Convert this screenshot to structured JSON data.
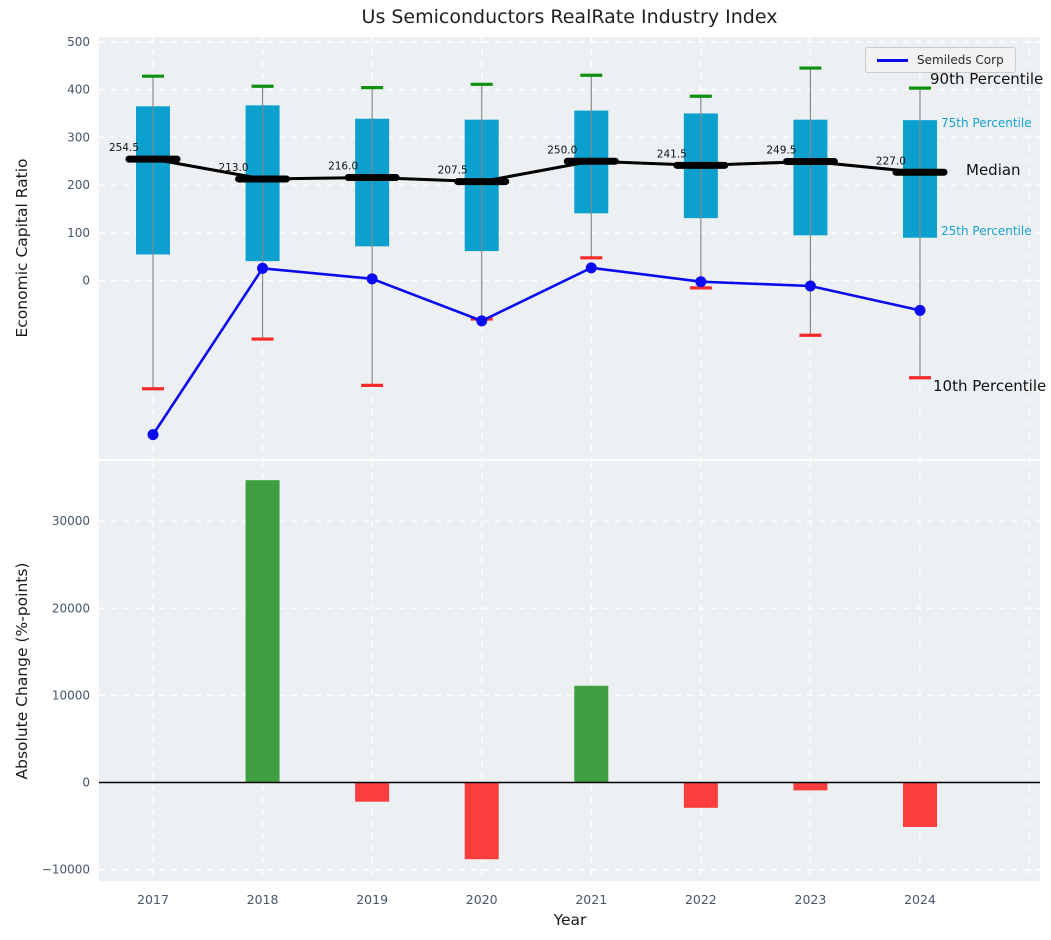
{
  "title": "Us Semiconductors RealRate Industry Index",
  "legend": {
    "label": "Semileds Corp"
  },
  "annotations": {
    "p90": "90th Percentile",
    "p75": "75th Percentile",
    "median": "Median",
    "p25": "25th Percentile",
    "p10": "10th Percentile"
  },
  "colors": {
    "panel_bg": "#edf0f2",
    "grid": "#ffffff",
    "box_fill": "#0ba0cd",
    "whisker": "#8a8a8a",
    "cap_green": "#0f8f0f",
    "cap_red": "#f52b2b",
    "median_black": "#000000",
    "company_blue": "#0b0bf0",
    "bar_positive": "#3f9e41",
    "bar_negative": "#fa3d3d",
    "tick_text": "#46566b",
    "median_label_text": "#111111",
    "annotation_cyan": "#18a0d0",
    "zero_line": "#000000"
  },
  "chart_data": [
    {
      "type": "boxline",
      "panel": "top",
      "ylabel": "Economic Capital Ratio",
      "ylim": [
        -373,
        510
      ],
      "yticks": [
        500,
        400,
        300,
        200,
        100,
        0
      ],
      "grid": true,
      "legend_position": "upper right",
      "categories": [
        "2017",
        "2018",
        "2019",
        "2020",
        "2021",
        "2022",
        "2023",
        "2024"
      ],
      "series": [
        {
          "name": "90th Percentile",
          "values": [
            428,
            407,
            404,
            411,
            430,
            386,
            445,
            403
          ]
        },
        {
          "name": "75th Percentile",
          "values": [
            365,
            367,
            339,
            337,
            356,
            350,
            337,
            336
          ]
        },
        {
          "name": "Median",
          "values": [
            254.5,
            213.0,
            216.0,
            207.5,
            250.0,
            241.5,
            249.5,
            227.0
          ]
        },
        {
          "name": "25th Percentile",
          "values": [
            55,
            41,
            72,
            62,
            141,
            131,
            95,
            90
          ]
        },
        {
          "name": "10th Percentile",
          "values": [
            -226,
            -122,
            -219,
            -80,
            48,
            -15,
            -114,
            -203
          ]
        },
        {
          "name": "Semileds Corp",
          "values": [
            -322,
            26,
            4,
            -84,
            27,
            -2,
            -11,
            -62
          ]
        }
      ],
      "median_labels": [
        "254.5",
        "213.0",
        "216.0",
        "207.5",
        "250.0",
        "241.5",
        "249.5",
        "227.0"
      ]
    },
    {
      "type": "bar",
      "panel": "bottom",
      "xlabel": "Year",
      "ylabel": "Absolute Change (%-points)",
      "ylim": [
        -11300,
        36900
      ],
      "yticks": [
        30000,
        20000,
        10000,
        0,
        -10000
      ],
      "ytick_labels": [
        "30000",
        "20000",
        "10000",
        "0",
        "−10000"
      ],
      "grid": true,
      "zero_line": true,
      "categories": [
        "2017",
        "2018",
        "2019",
        "2020",
        "2021",
        "2022",
        "2023",
        "2024"
      ],
      "values": [
        null,
        34700,
        -2200,
        -8800,
        11100,
        -2900,
        -900,
        -5100
      ]
    }
  ]
}
